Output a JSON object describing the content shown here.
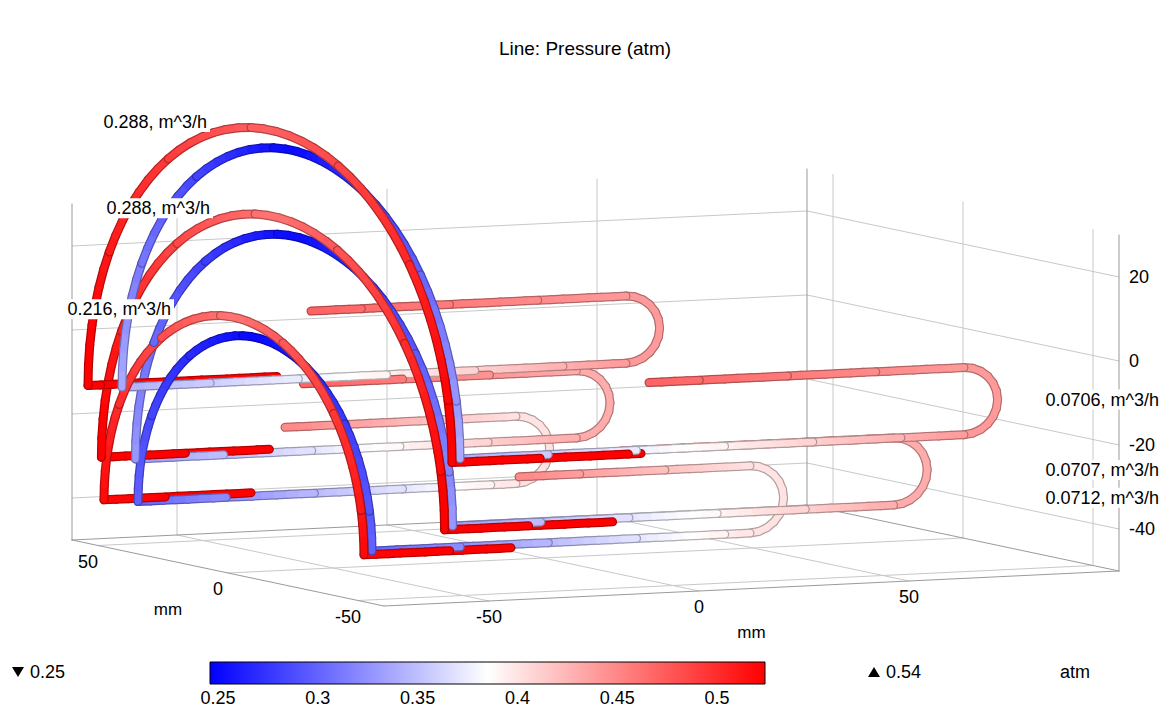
{
  "chart_data": {
    "type": "line3d",
    "title": "Line: Pressure (atm)",
    "xlabel": "mm",
    "ylabel": "mm",
    "xlim": [
      -75,
      100
    ],
    "xticks": [
      -50,
      0,
      50
    ],
    "ylim": [
      -60,
      60
    ],
    "yticks": [
      -50,
      0,
      50
    ],
    "zlim": [
      -50,
      30
    ],
    "zticks": [
      -40,
      -20,
      0,
      20
    ],
    "grid": true,
    "colorbar": {
      "label": "atm",
      "range": [
        0.246,
        0.524
      ],
      "ticks": [
        0.25,
        0.3,
        0.35,
        0.4,
        0.45,
        0.5
      ],
      "min": 0.25,
      "max": 0.54,
      "colors": [
        "#0000ff",
        "#ffffff",
        "#ff0000"
      ]
    },
    "series": [
      {
        "center": [
          -65,
          0,
          -15
        ],
        "radius": 70,
        "inlet_label": "0.288, m^3/h",
        "outlet_label": "0.0706, m^3/h",
        "supply": {
          "leg_end_u": -20,
          "pressure": [
            0.54,
            0.53,
            0.47
          ]
        },
        "return": {
          "offset_u": 5,
          "radius": 65,
          "end_u": 60,
          "bend_radius": 8,
          "back_u": -15,
          "pressure": [
            0.25,
            0.34,
            0.44,
            0.47
          ]
        }
      },
      {
        "center": [
          -55,
          15,
          -34
        ],
        "radius": 66,
        "inlet_label": "0.288, m^3/h",
        "outlet_label": "0.0707, m^3/h",
        "supply": {
          "leg_end_u": -15,
          "pressure": [
            0.54,
            0.53,
            0.46
          ]
        },
        "return": {
          "offset_u": 5,
          "radius": 61,
          "end_u": 55,
          "bend_radius": 8,
          "back_u": -10,
          "pressure": [
            0.25,
            0.33,
            0.43,
            0.47
          ]
        }
      },
      {
        "center": [
          -55,
          30,
          -44
        ],
        "radius": 50,
        "inlet_label": "0.216, m^3/h",
        "outlet_label": "0.0712, m^3/h",
        "supply": {
          "leg_end_u": -20,
          "pressure": [
            0.53,
            0.52,
            0.46
          ]
        },
        "return": {
          "offset_u": 5,
          "radius": 45,
          "end_u": 40,
          "bend_radius": 8,
          "back_u": -15,
          "pressure": [
            0.25,
            0.3,
            0.4,
            0.45
          ]
        }
      }
    ]
  }
}
